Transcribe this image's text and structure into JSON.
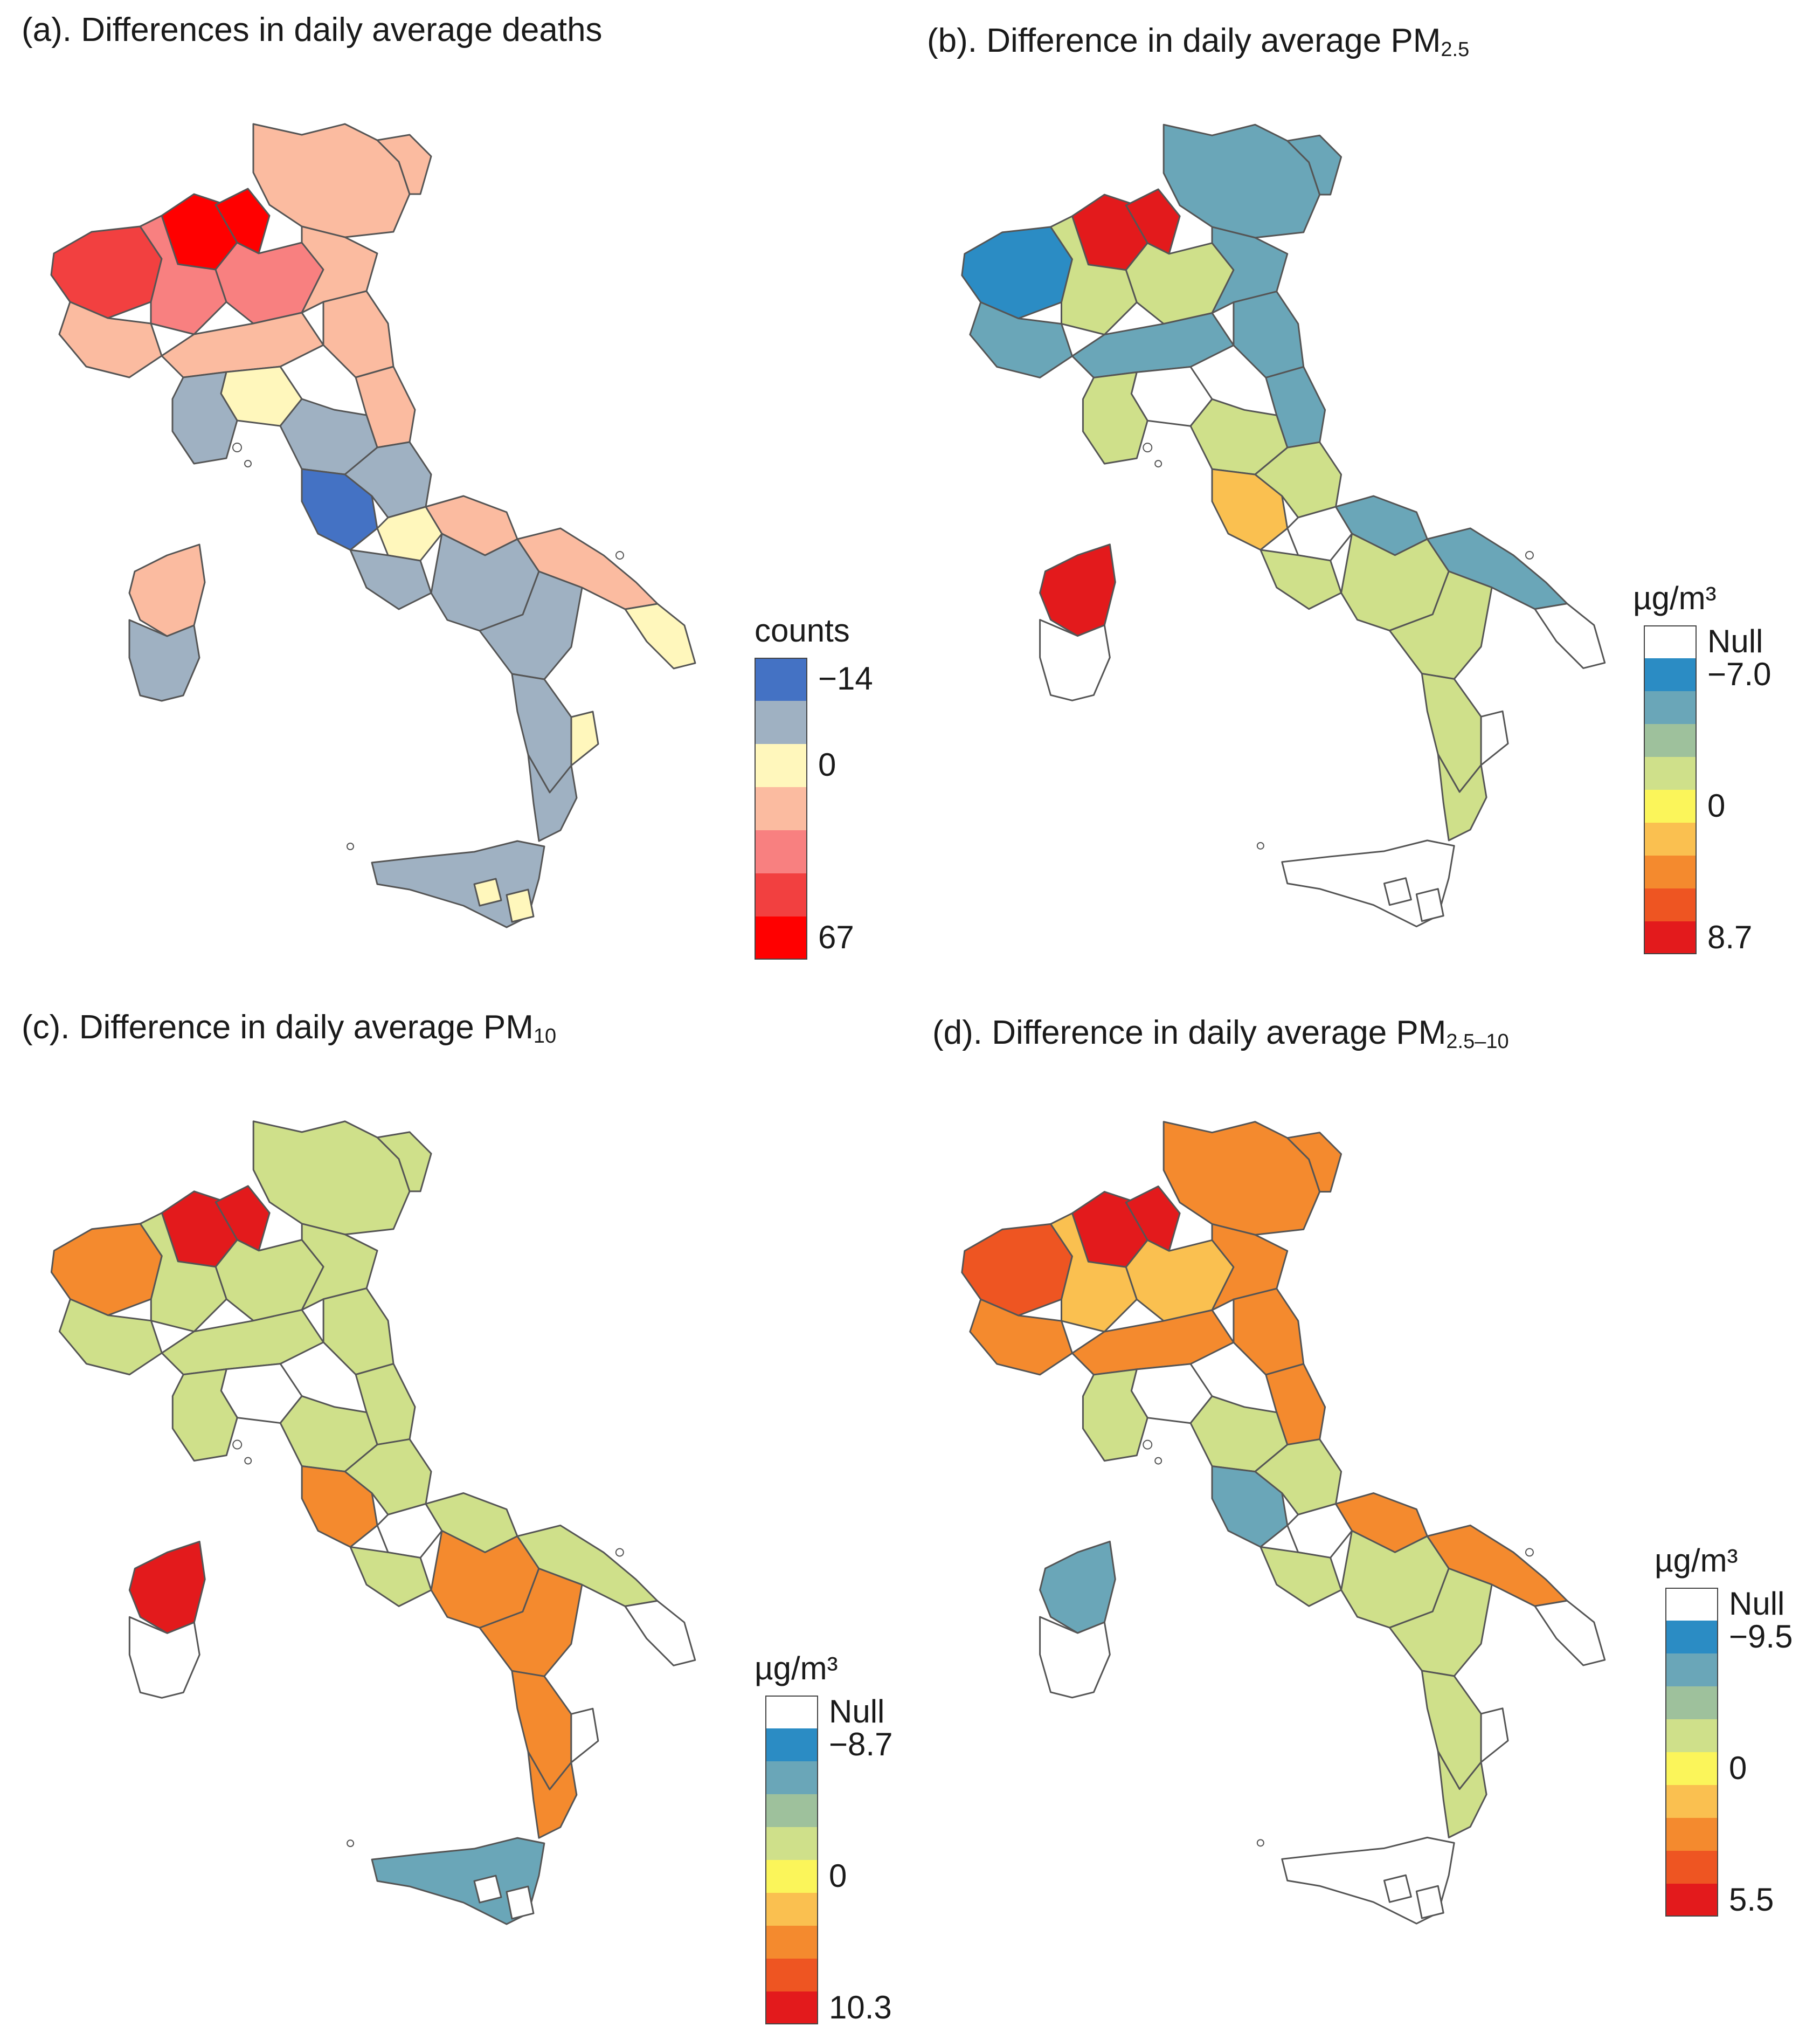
{
  "panels": [
    {
      "title_main": "(a). Differences in daily average deaths",
      "title_sub": "",
      "legend": {
        "title": "counts",
        "colors": [
          "#4472c4",
          "#9fb1c2",
          "#fff7bc",
          "#fbbba0",
          "#f88080",
          "#f24040",
          "#ff0000"
        ],
        "ticks": [
          "−14",
          "0",
          "67"
        ],
        "tick_positions": [
          0,
          2,
          6
        ]
      }
    },
    {
      "title_main": "(b). Difference in daily average PM",
      "title_sub": "2.5",
      "legend": {
        "title": "µg/m³",
        "colors": [
          "#ffffff",
          "#2b8cc4",
          "#6aa6b8",
          "#9ec19c",
          "#cfe08a",
          "#fbf55a",
          "#fac050",
          "#f48a2e",
          "#ee5522",
          "#e31a1c"
        ],
        "ticks": [
          "Null",
          "−7.0",
          "0",
          "8.7"
        ],
        "tick_positions": [
          0,
          1,
          5,
          9
        ]
      }
    },
    {
      "title_main": "(c). Difference in daily average PM",
      "title_sub": "10",
      "legend": {
        "title": "µg/m³",
        "colors": [
          "#ffffff",
          "#2b8cc4",
          "#6aa6b8",
          "#9ec19c",
          "#cfe08a",
          "#fbf55a",
          "#fac050",
          "#f48a2e",
          "#ee5522",
          "#e31a1c"
        ],
        "ticks": [
          "Null",
          "−8.7",
          "0",
          "10.3"
        ],
        "tick_positions": [
          0,
          1,
          5,
          9
        ]
      }
    },
    {
      "title_main": "(d). Difference in daily average PM",
      "title_sub": "2.5–10",
      "legend": {
        "title": "µg/m³",
        "colors": [
          "#ffffff",
          "#2b8cc4",
          "#6aa6b8",
          "#9ec19c",
          "#cfe08a",
          "#fbf55a",
          "#fac050",
          "#f48a2e",
          "#ee5522",
          "#e31a1c"
        ],
        "ticks": [
          "Null",
          "−9.5",
          "0",
          "5.5"
        ],
        "tick_positions": [
          0,
          1,
          5,
          9
        ]
      }
    }
  ],
  "map_colors": {
    "outline": "#555555",
    "a": {
      "north": "#fbbba0",
      "northwest_hot": "#f24040",
      "core_hot": "#ff0000",
      "mid": "#f88080",
      "center": "#9fb1c2",
      "rome": "#4472c4",
      "light": "#fff7bc",
      "south": "#9fb1c2",
      "sardinia_n": "#fbbba0",
      "sardinia_s": "#9fb1c2",
      "sicily": "#9fb1c2"
    },
    "b": {
      "north": "#6aa6b8",
      "northwest_hot": "#2b8cc4",
      "core_hot": "#e31a1c",
      "mid": "#cfe08a",
      "center": "#cfe08a",
      "rome": "#fac050",
      "light": "#ffffff",
      "south": "#cfe08a",
      "sardinia_n": "#e31a1c",
      "sardinia_s": "#ffffff",
      "sicily": "#ffffff"
    },
    "c": {
      "north": "#cfe08a",
      "northwest_hot": "#f48a2e",
      "core_hot": "#e31a1c",
      "mid": "#cfe08a",
      "center": "#cfe08a",
      "rome": "#f48a2e",
      "light": "#ffffff",
      "south": "#f48a2e",
      "sardinia_n": "#e31a1c",
      "sardinia_s": "#ffffff",
      "sicily": "#6aa6b8"
    },
    "d": {
      "north": "#f48a2e",
      "northwest_hot": "#ee5522",
      "core_hot": "#e31a1c",
      "mid": "#fac050",
      "center": "#cfe08a",
      "rome": "#6aa6b8",
      "light": "#ffffff",
      "south": "#cfe08a",
      "sardinia_n": "#6aa6b8",
      "sardinia_s": "#ffffff",
      "sicily": "#ffffff"
    }
  }
}
